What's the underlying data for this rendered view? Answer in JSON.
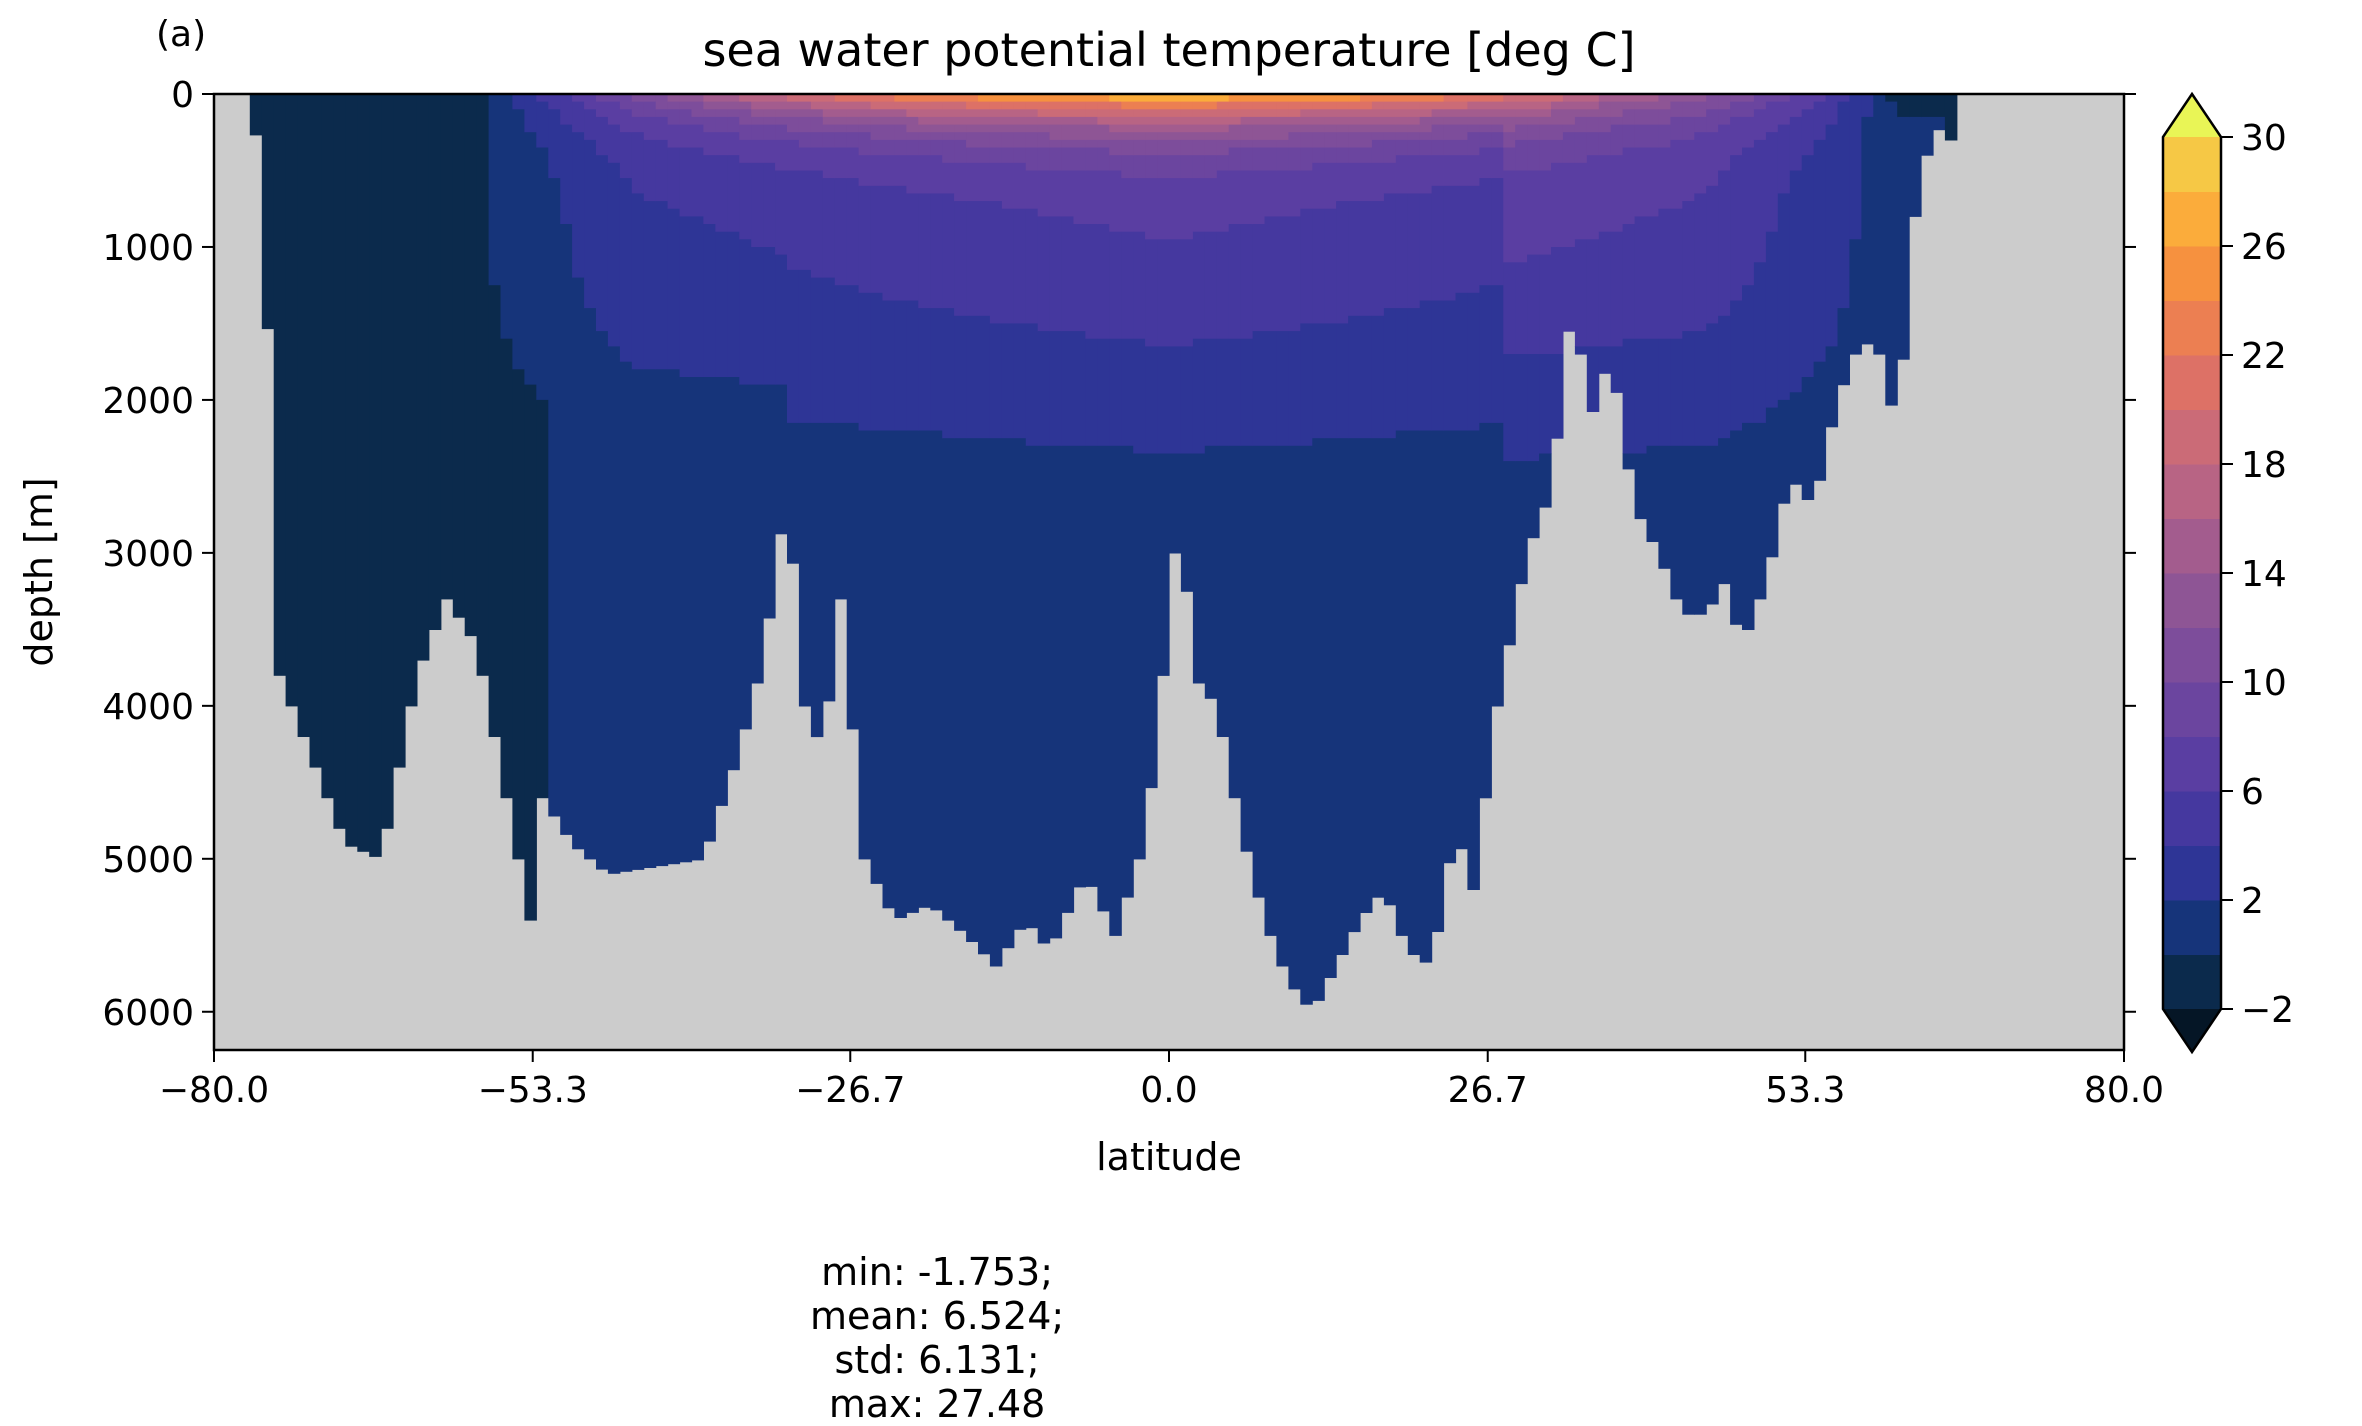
{
  "panel_label": "(a)",
  "chart_data": {
    "type": "heatmap",
    "title": "sea water potential temperature [deg C]",
    "xlabel": "latitude",
    "ylabel": "depth [m]",
    "xlim": [
      -80.0,
      80.0
    ],
    "ylim": [
      6250,
      0
    ],
    "y_inverted": true,
    "x_ticks": [
      "−80.0",
      "−53.3",
      "−26.7",
      "0.0",
      "26.7",
      "53.3",
      "80.0"
    ],
    "x_tick_values": [
      -80.0,
      -53.3,
      -26.7,
      0.0,
      26.7,
      53.3,
      80.0
    ],
    "y_ticks": [
      "0",
      "1000",
      "2000",
      "3000",
      "4000",
      "5000",
      "6000"
    ],
    "y_tick_values": [
      0,
      1000,
      2000,
      3000,
      4000,
      5000,
      6000
    ],
    "land_color": "#cccccc",
    "colorbar": {
      "levels": [
        -2,
        0,
        2,
        4,
        6,
        8,
        10,
        12,
        14,
        16,
        18,
        20,
        22,
        24,
        26,
        28,
        30
      ],
      "tick_labels": [
        "−2",
        "2",
        "6",
        "10",
        "14",
        "18",
        "22",
        "26",
        "30"
      ],
      "tick_values": [
        -2,
        2,
        6,
        10,
        14,
        18,
        22,
        26,
        30
      ],
      "colors": [
        "#0b2a4c",
        "#16347a",
        "#2e3596",
        "#45389f",
        "#5a3ea2",
        "#6b459f",
        "#7d4d9b",
        "#8e5595",
        "#a35c8e",
        "#b86484",
        "#cb6b77",
        "#dd7166",
        "#ec7f52",
        "#f6913f",
        "#fbac3b",
        "#f6c845"
      ],
      "extend_min_color": "#051626",
      "extend_max_color": "#e9f556"
    },
    "seafloor_depth_by_latitude": {
      "lat": [
        -80,
        -77.5,
        -76,
        -74.5,
        -72,
        -69,
        -66,
        -63,
        -60.5,
        -58,
        -55.5,
        -53.5,
        -53,
        -52.5,
        -50,
        -47,
        -43,
        -39,
        -36,
        -34,
        -32,
        -30.5,
        -29,
        -27.5,
        -25.5,
        -23,
        -20,
        -17,
        -14.5,
        -12,
        -10,
        -7,
        -4.5,
        -2.5,
        -1,
        0,
        1,
        2,
        4,
        6,
        8,
        10,
        12,
        14,
        16,
        18,
        20,
        22,
        24,
        25.5,
        27.5,
        30,
        32,
        34,
        35,
        37,
        39,
        41,
        43,
        45,
        46.5,
        48,
        50,
        52,
        54,
        56,
        58,
        59.5,
        61,
        62.5,
        64,
        65.5,
        66.5,
        67.5,
        69,
        70.5,
        80
      ],
      "depth": [
        0,
        0,
        400,
        3800,
        4300,
        4900,
        5000,
        3800,
        3300,
        3600,
        4600,
        5400,
        6250,
        4600,
        4900,
        5100,
        5050,
        5000,
        4300,
        3700,
        2600,
        4000,
        4300,
        3300,
        5000,
        5400,
        5300,
        5500,
        5700,
        5400,
        5600,
        5100,
        5500,
        5000,
        4300,
        3300,
        2700,
        3800,
        4000,
        4800,
        5400,
        5800,
        6000,
        5700,
        5400,
        5200,
        5600,
        5700,
        4800,
        5200,
        4000,
        3000,
        2600,
        1200,
        2200,
        1700,
        2700,
        3000,
        3400,
        3400,
        3200,
        3600,
        3200,
        2500,
        2700,
        2000,
        1600,
        1700,
        2200,
        800,
        200,
        300,
        0,
        0,
        0,
        0,
        0
      ]
    }
  },
  "stats": {
    "min": "min: -1.753;",
    "mean": "mean: 6.524;",
    "std": "std: 6.131;",
    "max": "max: 27.48"
  }
}
